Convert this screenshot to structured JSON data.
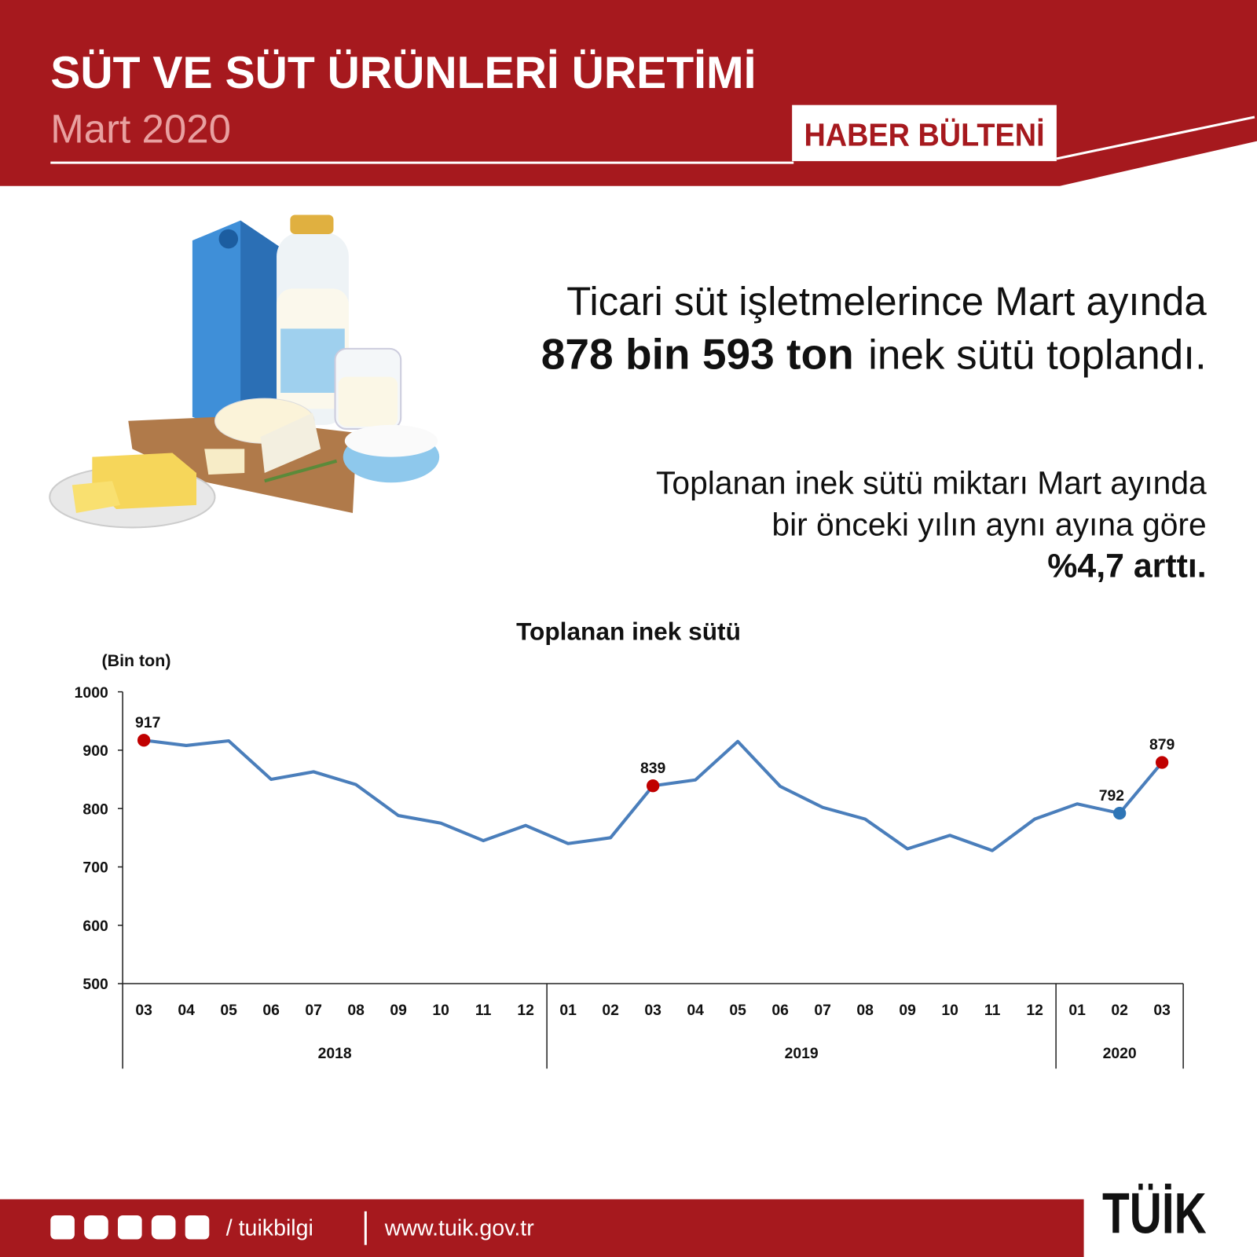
{
  "header": {
    "title": "SÜT VE SÜT ÜRÜNLERİ ÜRETİMİ",
    "subtitle": "Mart 2020",
    "badge": "HABER BÜLTENİ"
  },
  "headline": {
    "line1": "Ticari süt işletmelerince Mart ayında",
    "emphasis": "878 bin 593 ton",
    "line2": "inek sütü toplandı."
  },
  "summary": {
    "lines": [
      "Toplanan inek sütü miktarı Mart ayında",
      "bir önceki yılın aynı ayına göre"
    ],
    "emphasis": "%4,7 arttı."
  },
  "chart_data": {
    "type": "line",
    "title": "Toplanan inek sütü",
    "y_label": "(Bin ton)",
    "categories": [
      "03",
      "04",
      "05",
      "06",
      "07",
      "08",
      "09",
      "10",
      "11",
      "12",
      "01",
      "02",
      "03",
      "04",
      "05",
      "06",
      "07",
      "08",
      "09",
      "10",
      "11",
      "12",
      "01",
      "02",
      "03"
    ],
    "groups": [
      {
        "name": "2018",
        "size": 10
      },
      {
        "name": "2019",
        "size": 12
      },
      {
        "name": "2020",
        "size": 3
      }
    ],
    "values": [
      917,
      908,
      916,
      850,
      863,
      841,
      788,
      775,
      745,
      771,
      740,
      750,
      839,
      849,
      915,
      838,
      802,
      782,
      731,
      754,
      728,
      782,
      808,
      792,
      879
    ],
    "color": "#4a7ebb",
    "point_colors": [
      "#c00000",
      null,
      null,
      null,
      null,
      null,
      null,
      null,
      null,
      null,
      null,
      null,
      "#c00000",
      null,
      null,
      null,
      null,
      null,
      null,
      null,
      null,
      null,
      null,
      "#2e75b6",
      "#c00000"
    ],
    "ylim": [
      500,
      1000
    ],
    "yticks": [
      500,
      600,
      700,
      800,
      900,
      1000
    ]
  },
  "footer": {
    "handle": "/ tuikbilgi",
    "website": "www.tuik.gov.tr",
    "logo": "TÜİK"
  }
}
